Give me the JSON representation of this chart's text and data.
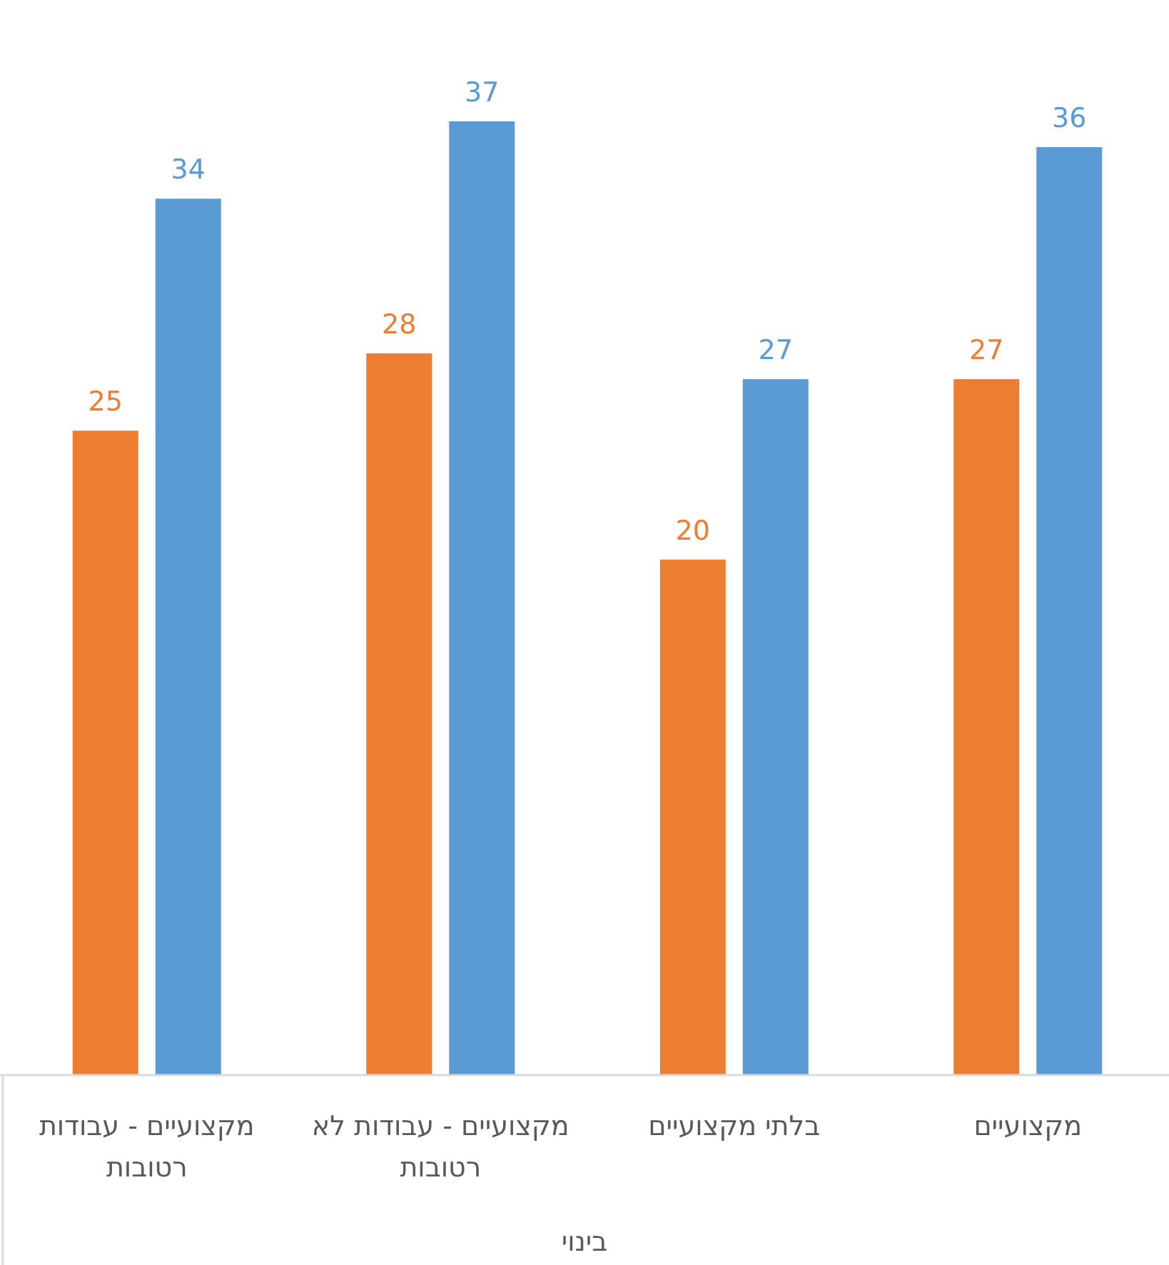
{
  "chart_data": {
    "type": "bar",
    "categories": [
      "מקצועיים - עבודות רטובות",
      "מקצועיים - עבודות לא רטובות",
      "בלתי מקצועיים",
      "מקצועיים"
    ],
    "series": [
      {
        "color": "#ed7d31",
        "values": [
          25,
          28,
          20,
          27
        ]
      },
      {
        "color": "#5b9bd5",
        "values": [
          34,
          37,
          27,
          36
        ]
      }
    ],
    "data_labels": true,
    "tick_labels": "x",
    "xlabel": "בינוי"
  }
}
